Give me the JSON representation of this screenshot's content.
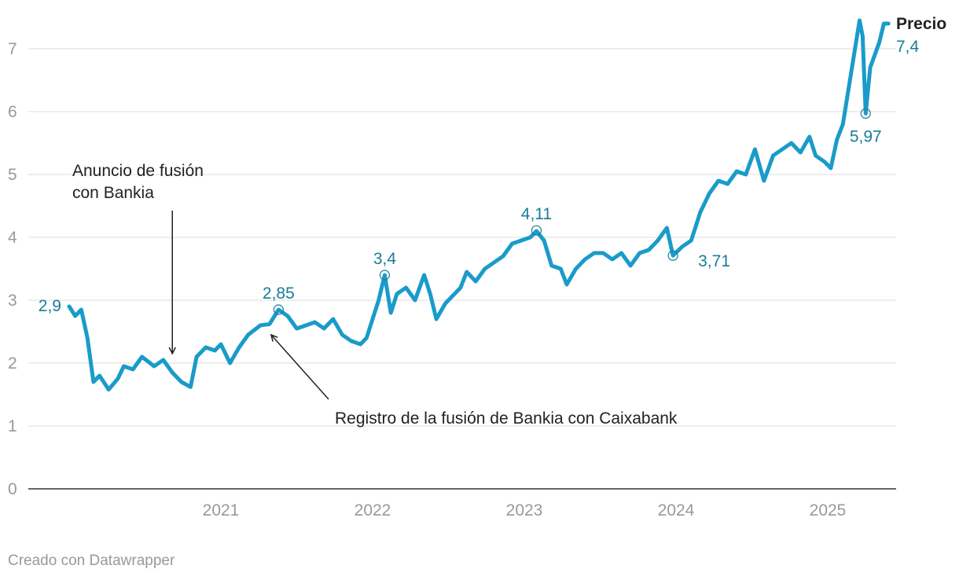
{
  "chart_data": {
    "type": "line",
    "title": "",
    "xlabel": "",
    "ylabel": "",
    "ylim": [
      0,
      7.5
    ],
    "y_ticks": [
      "0",
      "1",
      "2",
      "3",
      "4",
      "5",
      "6",
      "7"
    ],
    "x_ticks": [
      "2021",
      "2022",
      "2023",
      "2024",
      "2025"
    ],
    "x_range": [
      2020.0,
      2025.45
    ],
    "series": [
      {
        "name": "Precio",
        "color": "#1a9bc9",
        "points": [
          [
            2020.0,
            2.9
          ],
          [
            2020.04,
            2.75
          ],
          [
            2020.08,
            2.85
          ],
          [
            2020.12,
            2.4
          ],
          [
            2020.16,
            1.7
          ],
          [
            2020.2,
            1.8
          ],
          [
            2020.26,
            1.58
          ],
          [
            2020.32,
            1.75
          ],
          [
            2020.36,
            1.95
          ],
          [
            2020.42,
            1.9
          ],
          [
            2020.48,
            2.1
          ],
          [
            2020.56,
            1.95
          ],
          [
            2020.62,
            2.05
          ],
          [
            2020.68,
            1.85
          ],
          [
            2020.74,
            1.7
          ],
          [
            2020.8,
            1.62
          ],
          [
            2020.84,
            2.1
          ],
          [
            2020.9,
            2.25
          ],
          [
            2020.96,
            2.2
          ],
          [
            2021.0,
            2.3
          ],
          [
            2021.06,
            2.0
          ],
          [
            2021.12,
            2.25
          ],
          [
            2021.18,
            2.45
          ],
          [
            2021.26,
            2.6
          ],
          [
            2021.32,
            2.62
          ],
          [
            2021.38,
            2.85
          ],
          [
            2021.44,
            2.75
          ],
          [
            2021.5,
            2.55
          ],
          [
            2021.56,
            2.6
          ],
          [
            2021.62,
            2.65
          ],
          [
            2021.68,
            2.55
          ],
          [
            2021.74,
            2.7
          ],
          [
            2021.8,
            2.45
          ],
          [
            2021.86,
            2.35
          ],
          [
            2021.92,
            2.3
          ],
          [
            2021.96,
            2.4
          ],
          [
            2022.0,
            2.7
          ],
          [
            2022.04,
            3.0
          ],
          [
            2022.08,
            3.4
          ],
          [
            2022.12,
            2.8
          ],
          [
            2022.16,
            3.1
          ],
          [
            2022.22,
            3.2
          ],
          [
            2022.28,
            3.0
          ],
          [
            2022.34,
            3.4
          ],
          [
            2022.38,
            3.1
          ],
          [
            2022.42,
            2.7
          ],
          [
            2022.48,
            2.95
          ],
          [
            2022.54,
            3.1
          ],
          [
            2022.58,
            3.2
          ],
          [
            2022.62,
            3.45
          ],
          [
            2022.68,
            3.3
          ],
          [
            2022.74,
            3.5
          ],
          [
            2022.8,
            3.6
          ],
          [
            2022.86,
            3.7
          ],
          [
            2022.92,
            3.9
          ],
          [
            2022.98,
            3.95
          ],
          [
            2023.04,
            4.0
          ],
          [
            2023.08,
            4.1
          ],
          [
            2023.13,
            3.95
          ],
          [
            2023.18,
            3.55
          ],
          [
            2023.24,
            3.5
          ],
          [
            2023.28,
            3.25
          ],
          [
            2023.34,
            3.5
          ],
          [
            2023.4,
            3.65
          ],
          [
            2023.46,
            3.75
          ],
          [
            2023.52,
            3.75
          ],
          [
            2023.58,
            3.65
          ],
          [
            2023.64,
            3.75
          ],
          [
            2023.7,
            3.55
          ],
          [
            2023.76,
            3.75
          ],
          [
            2023.82,
            3.8
          ],
          [
            2023.88,
            3.95
          ],
          [
            2023.94,
            4.15
          ],
          [
            2023.98,
            3.71
          ],
          [
            2024.04,
            3.85
          ],
          [
            2024.1,
            3.95
          ],
          [
            2024.16,
            4.4
          ],
          [
            2024.22,
            4.7
          ],
          [
            2024.28,
            4.9
          ],
          [
            2024.34,
            4.85
          ],
          [
            2024.4,
            5.05
          ],
          [
            2024.46,
            5.0
          ],
          [
            2024.52,
            5.4
          ],
          [
            2024.58,
            4.9
          ],
          [
            2024.64,
            5.3
          ],
          [
            2024.7,
            5.4
          ],
          [
            2024.76,
            5.5
          ],
          [
            2024.82,
            5.35
          ],
          [
            2024.88,
            5.6
          ],
          [
            2024.92,
            5.3
          ],
          [
            2024.98,
            5.2
          ],
          [
            2025.02,
            5.1
          ],
          [
            2025.06,
            5.55
          ],
          [
            2025.1,
            5.8
          ],
          [
            2025.14,
            6.4
          ],
          [
            2025.18,
            7.0
          ],
          [
            2025.21,
            7.45
          ],
          [
            2025.23,
            7.2
          ],
          [
            2025.25,
            5.97
          ],
          [
            2025.28,
            6.7
          ],
          [
            2025.31,
            6.9
          ],
          [
            2025.34,
            7.1
          ],
          [
            2025.37,
            7.4
          ],
          [
            2025.4,
            7.4
          ]
        ]
      }
    ],
    "point_labels": [
      {
        "x": 2020.0,
        "y": 2.9,
        "label": "2,9",
        "marker": false,
        "anchor": "left"
      },
      {
        "x": 2021.38,
        "y": 2.85,
        "label": "2,85",
        "marker": true,
        "anchor": "above"
      },
      {
        "x": 2022.08,
        "y": 3.4,
        "label": "3,4",
        "marker": true,
        "anchor": "above"
      },
      {
        "x": 2023.08,
        "y": 4.11,
        "label": "4,11",
        "marker": true,
        "anchor": "above"
      },
      {
        "x": 2023.98,
        "y": 3.71,
        "label": "3,71",
        "marker": true,
        "anchor": "right"
      },
      {
        "x": 2025.25,
        "y": 5.97,
        "label": "5,97",
        "marker": true,
        "anchor": "below"
      }
    ],
    "end_label": {
      "name": "Precio",
      "value": "7,4"
    },
    "annotations": [
      {
        "lines": [
          "Anuncio de fusión",
          "con Bankia"
        ],
        "arrow_to": [
          2020.68,
          2.15
        ]
      },
      {
        "lines": [
          "Registro de la fusión de Bankia con Caixabank"
        ],
        "arrow_to": [
          2021.3,
          2.5
        ]
      }
    ]
  },
  "footer": {
    "credit": "Creado con Datawrapper"
  }
}
